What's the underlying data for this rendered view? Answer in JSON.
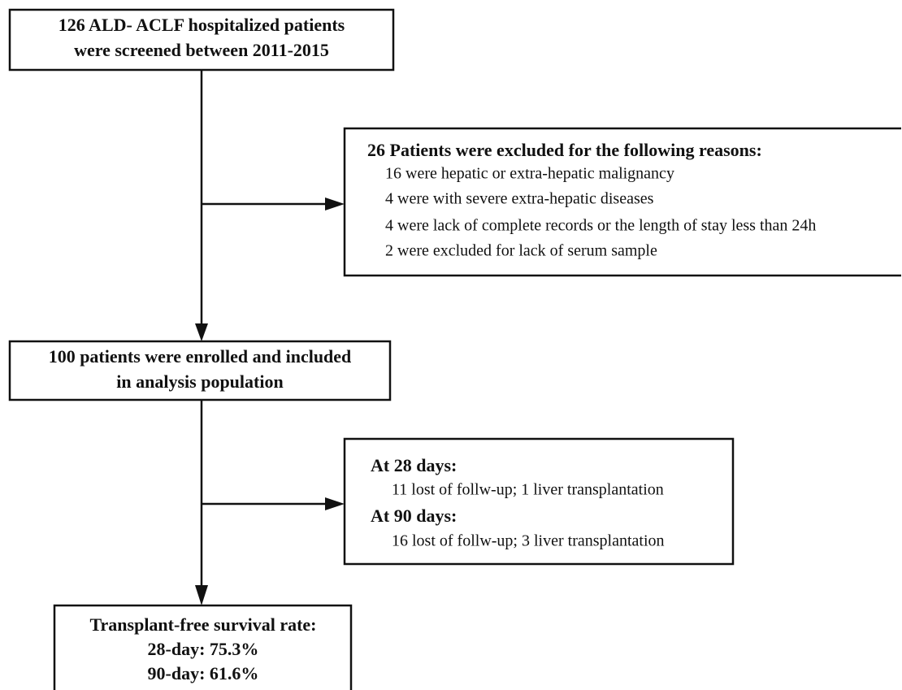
{
  "nodes": [
    {
      "lines": [
        "126 ALD- ACLF hospitalized patients",
        "were screened between 2011-2015"
      ]
    },
    {
      "title": "26 Patients were excluded for the following reasons:",
      "lines": [
        "16 were hepatic or extra-hepatic malignancy",
        "4 were with severe extra-hepatic diseases",
        "4 were lack of complete records or the length of stay less than 24h",
        "2 were excluded for lack of serum sample"
      ]
    },
    {
      "lines": [
        "100 patients were enrolled and included",
        "in analysis population"
      ]
    },
    {
      "lines": [
        "At 28 days:",
        "11 lost of follw-up; 1 liver transplantation",
        "At 90 days:",
        "16 lost of follw-up; 3 liver transplantation"
      ]
    },
    {
      "lines": [
        "Transplant-free survival rate:",
        "28-day: 75.3%",
        "90-day: 61.6%"
      ]
    }
  ]
}
